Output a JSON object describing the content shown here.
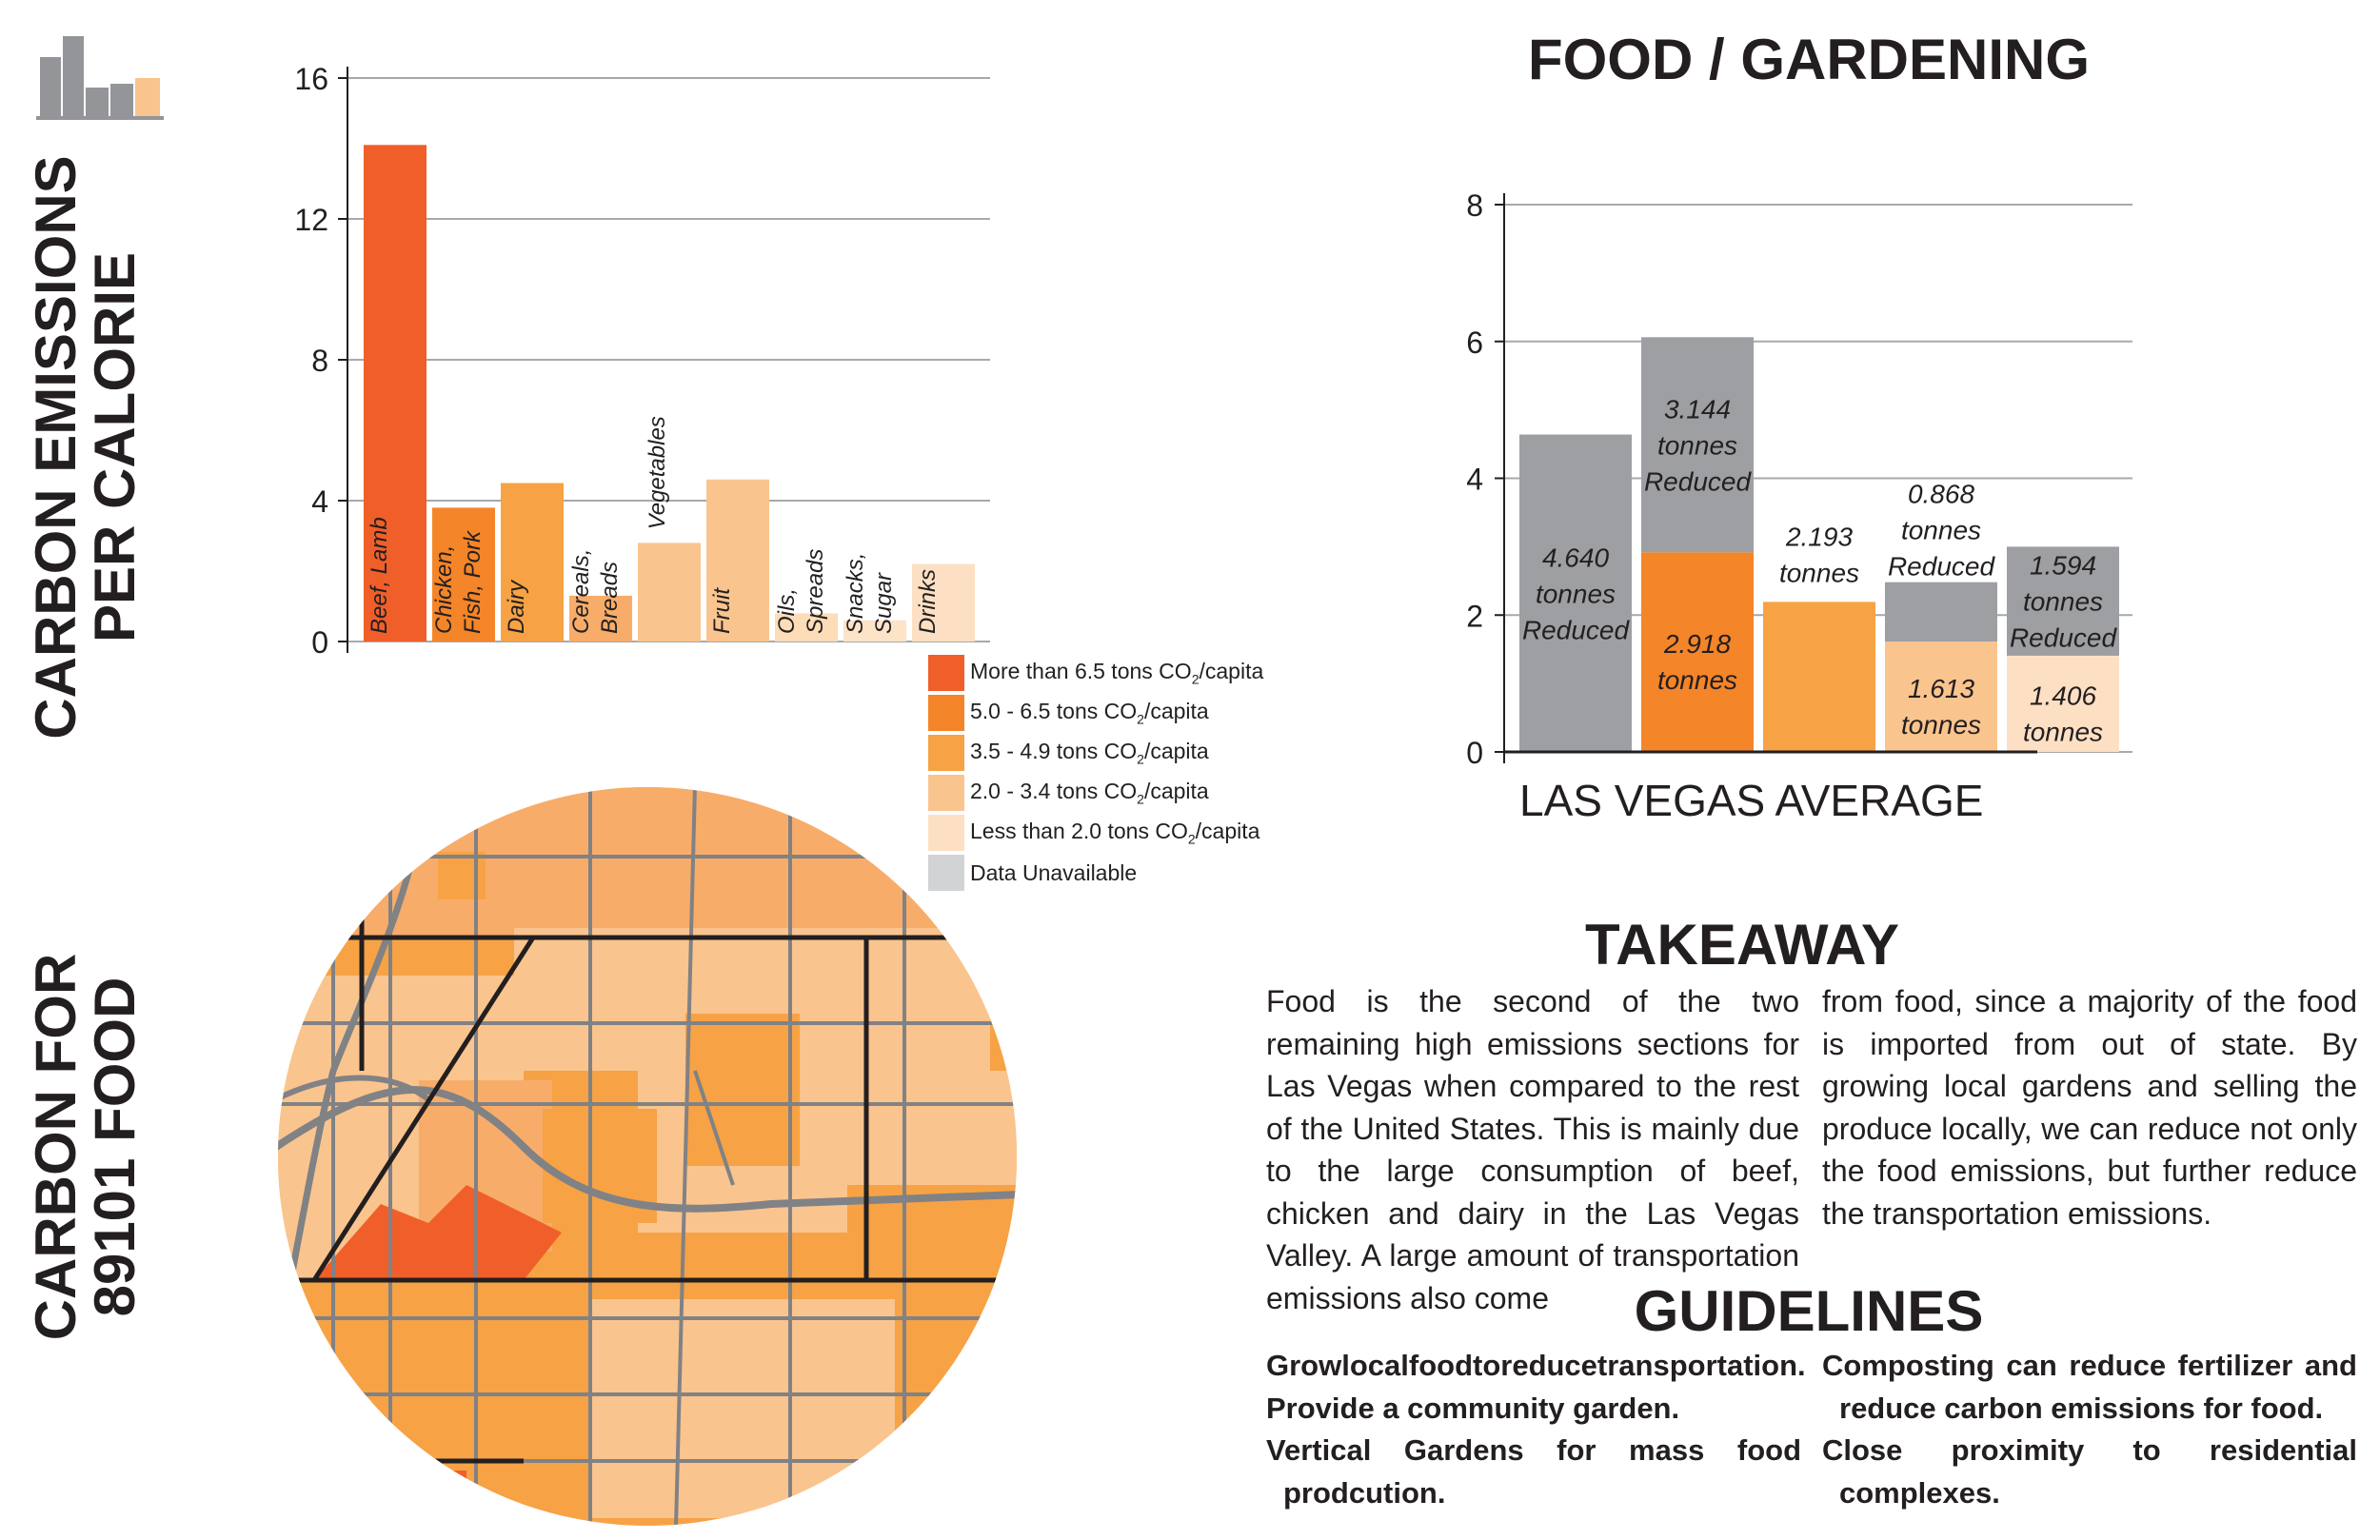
{
  "icon": {
    "name": "bar-chart-icon"
  },
  "side_titles": {
    "top": [
      "CARBON EMISSIONS",
      "PER CALORIE"
    ],
    "bottom": [
      "CARBON FOR",
      "89101 FOOD"
    ]
  },
  "page_title": "FOOD / GARDENING",
  "legend": [
    {
      "pre": "More than 6.5 tons CO",
      "sub": "2",
      "post": "/capita",
      "color": "#f05f2a"
    },
    {
      "pre": "5.0 - 6.5 tons CO",
      "sub": "2",
      "post": "/capita",
      "color": "#f48528"
    },
    {
      "pre": "3.5 - 4.9 tons CO",
      "sub": "2",
      "post": "/capita",
      "color": "#f7a244"
    },
    {
      "pre": "2.0 - 3.4 tons CO",
      "sub": "2",
      "post": "/capita",
      "color": "#fac48e"
    },
    {
      "pre": "Less than 2.0 tons CO",
      "sub": "2",
      "post": "/capita",
      "color": "#fde0c4"
    },
    {
      "pre": "Data Unavailable",
      "sub": "",
      "post": "",
      "color": "#d1d3d4"
    }
  ],
  "chart_data": [
    {
      "type": "bar",
      "categories": [
        "Beef, Lamb",
        "Chicken, Fish, Pork",
        "Dairy",
        "Cereals, Breads",
        "Vegetables",
        "Fruit",
        "Oils, Spreads",
        "Snacks, Sugar",
        "Drinks"
      ],
      "category_lines": [
        [
          "Beef, Lamb"
        ],
        [
          "Chicken,",
          "Fish, Pork"
        ],
        [
          "Dairy"
        ],
        [
          "Cereals,",
          "Breads"
        ],
        [
          "Vegetables"
        ],
        [
          "Fruit"
        ],
        [
          "Oils,",
          "Spreads"
        ],
        [
          "Snacks,",
          "Sugar"
        ],
        [
          "Drinks"
        ]
      ],
      "values": [
        14.1,
        3.8,
        4.5,
        1.3,
        2.8,
        4.6,
        0.8,
        0.6,
        2.2
      ],
      "colors": [
        "#f05f2a",
        "#f48528",
        "#f7a244",
        "#f8ac69",
        "#fac48e",
        "#fac48e",
        "#fddcb8",
        "#fde3c8",
        "#fde0c4"
      ],
      "label_inside": [
        true,
        true,
        true,
        true,
        false,
        true,
        true,
        true,
        true
      ],
      "yticks": [
        0,
        4,
        8,
        12,
        16
      ],
      "ylim": [
        0,
        16
      ],
      "grid": true
    },
    {
      "type": "bar",
      "stacked": true,
      "xlabel": "LAS VEGAS AVERAGE",
      "yticks": [
        0,
        2,
        4,
        6,
        8
      ],
      "ylim": [
        0,
        8
      ],
      "grid": true,
      "bars": [
        {
          "total": 4.64,
          "base": 0,
          "base_color": "#f48528",
          "top_color": "#9d9fa2",
          "top_label": [
            "4.640",
            "tonnes",
            "Reduced"
          ],
          "base_label": []
        },
        {
          "total": 6.062,
          "base": 2.918,
          "base_color": "#f48528",
          "top_color": "#9d9fa2",
          "top_label": [
            "3.144",
            "tonnes",
            "Reduced"
          ],
          "base_label": [
            "2.918",
            "tonnes"
          ]
        },
        {
          "total": 2.193,
          "base": 2.193,
          "base_color": "#f7a244",
          "top_color": "#9d9fa2",
          "top_label": [],
          "base_label": [],
          "above_label": [
            "2.193",
            "tonnes"
          ]
        },
        {
          "total": 2.481,
          "base": 1.613,
          "base_color": "#fac48e",
          "top_color": "#9d9fa2",
          "top_label": [
            "0.868",
            "tonnes",
            "Reduced"
          ],
          "base_label": [
            "1.613",
            "tonnes"
          ],
          "top_label_above": true
        },
        {
          "total": 3.0,
          "base": 1.406,
          "base_color": "#fde0c4",
          "top_color": "#9d9fa2",
          "top_label": [
            "1.594",
            "tonnes",
            "Reduced"
          ],
          "base_label": [
            "1.406",
            "tonnes"
          ]
        }
      ]
    }
  ],
  "takeaway": {
    "heading": "TAKEAWAY",
    "col1": "Food is the second of the two remaining high emissions sections for Las Vegas when compared to the rest of the United States. This is mainly due to the large consumption of beef, chicken and dairy in the Las Vegas Valley. A large amount of transportation emissions also come",
    "col2": "from food, since a majority of the food is imported from out of state. By growing local gardens and selling the produce locally, we can reduce not only the food emissions, but further reduce the transportation emissions."
  },
  "guidelines": {
    "heading": "GUIDELINES",
    "col1": [
      [
        "Growlocalfoodtoreducetransportation."
      ],
      [
        "Provide a community garden."
      ],
      [
        "Vertical Gardens for mass food",
        "prodcution."
      ]
    ],
    "col2": [
      [
        "Composting can reduce fertilizer and",
        "reduce carbon emissions for food."
      ],
      [
        "Close proximity to residential",
        "complexes."
      ]
    ]
  },
  "map": {
    "name": "zip-89101-emissions-map"
  }
}
